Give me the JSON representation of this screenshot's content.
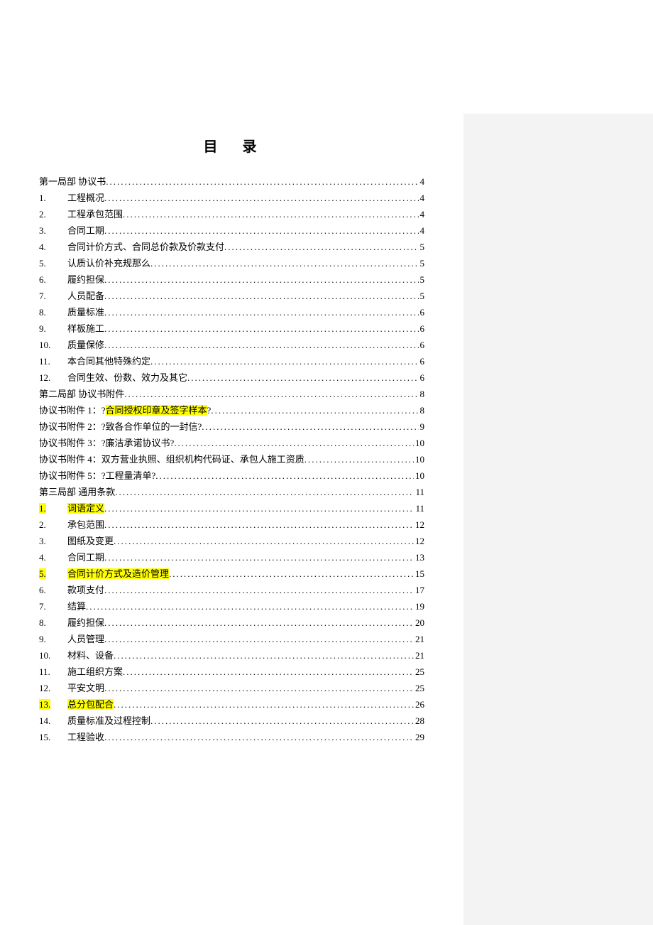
{
  "title_left": "目",
  "title_right": "录",
  "highlight_color": "#ffff00",
  "text_color": "#000000",
  "background_color": "#ffffff",
  "sidebar_color": "#f3f3f3",
  "font_size_body": 13,
  "font_size_title": 20,
  "entries": [
    {
      "num": "",
      "label": "第一局部 协议书",
      "page": "4",
      "indent": false
    },
    {
      "num": "1.",
      "label": "工程概况",
      "page": "4",
      "indent": true
    },
    {
      "num": "2.",
      "label": "工程承包范围",
      "page": "4",
      "indent": true
    },
    {
      "num": "3.",
      "label": "合同工期",
      "page": "4",
      "indent": true
    },
    {
      "num": "4.",
      "label": "合同计价方式、合同总价款及价款支付",
      "page": "5",
      "indent": true
    },
    {
      "num": "5.",
      "label": "认质认价补充规那么",
      "page": "5",
      "indent": true
    },
    {
      "num": "6.",
      "label": "履约担保",
      "page": "5",
      "indent": true
    },
    {
      "num": "7.",
      "label": "人员配备",
      "page": "5",
      "indent": true
    },
    {
      "num": "8.",
      "label": "质量标准",
      "page": "6",
      "indent": true
    },
    {
      "num": "9.",
      "label": "样板施工",
      "page": "6",
      "indent": true
    },
    {
      "num": "10.",
      "label": "质量保修",
      "page": "6",
      "indent": true
    },
    {
      "num": "11.",
      "label": "本合同其他特殊约定",
      "page": "6",
      "indent": true
    },
    {
      "num": "12.",
      "label": "合同生效、份数、效力及其它",
      "page": "6",
      "indent": true
    },
    {
      "num": "",
      "label": "第二局部 协议书附件",
      "page": "8",
      "indent": false
    },
    {
      "num": "",
      "label_pre": "协议书附件 1：?",
      "label_hl": "合同授权印章及签字样本",
      "label_post": "?",
      "page": "8",
      "indent": false,
      "has_partial_hl": true
    },
    {
      "num": "",
      "label": "协议书附件 2：?致各合作单位的一封信?",
      "page": "9",
      "indent": false
    },
    {
      "num": "",
      "label": "协议书附件 3：?廉洁承诺协议书? ",
      "page": "10",
      "indent": false
    },
    {
      "num": "",
      "label": "协议书附件 4：双方营业执照、组织机构代码证、承包人施工资质",
      "page": "10",
      "indent": false
    },
    {
      "num": "",
      "label": "协议书附件 5：?工程量清单? ",
      "page": "10",
      "indent": false
    },
    {
      "num": "",
      "label": "第三局部 通用条款",
      "page": "11",
      "indent": false
    },
    {
      "num": "1.",
      "num_hl": true,
      "label": "词语定义",
      "page": "11",
      "indent": true,
      "label_hl_full": true
    },
    {
      "num": "2.",
      "label": "承包范围",
      "page": "12",
      "indent": true
    },
    {
      "num": "3.",
      "label": "图纸及变更",
      "page": "12",
      "indent": true
    },
    {
      "num": "4.",
      "label": "合同工期",
      "page": "13",
      "indent": true
    },
    {
      "num": "5.",
      "num_hl": true,
      "label": "合同计价方式及造价管理",
      "page": "15",
      "indent": true,
      "label_hl_full": true
    },
    {
      "num": "6.",
      "label": "款项支付",
      "page": "17",
      "indent": true
    },
    {
      "num": "7.",
      "label": "结算",
      "page": "19",
      "indent": true
    },
    {
      "num": "8.",
      "label": "履约担保",
      "page": "20",
      "indent": true
    },
    {
      "num": "9.",
      "label": "人员管理",
      "page": "21",
      "indent": true
    },
    {
      "num": "10.",
      "label": "材料、设备",
      "page": "21",
      "indent": true
    },
    {
      "num": "11.",
      "label": "施工组织方案",
      "page": "25",
      "indent": true
    },
    {
      "num": "12.",
      "label": "平安文明",
      "page": "25",
      "indent": true
    },
    {
      "num": "13.",
      "num_hl": true,
      "label": "总分包配合",
      "page": "26",
      "indent": true,
      "label_hl_full": true
    },
    {
      "num": "14.",
      "label": "质量标准及过程控制",
      "page": "28",
      "indent": true
    },
    {
      "num": "15.",
      "label": "工程验收",
      "page": "29",
      "indent": true
    }
  ]
}
